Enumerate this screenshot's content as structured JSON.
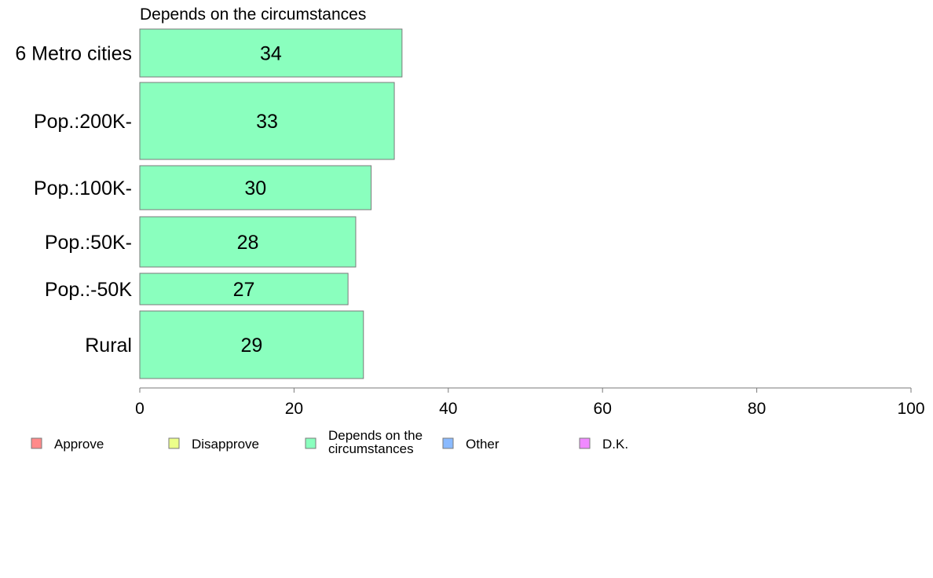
{
  "chart_data": {
    "type": "bar",
    "orientation": "horizontal",
    "title": "Depends on the circumstances",
    "categories": [
      "6 Metro cities",
      "Pop.:200K-",
      "Pop.:100K-",
      "Pop.:50K-",
      "Pop.:-50K",
      "Rural"
    ],
    "values": [
      34,
      33,
      30,
      28,
      27,
      29
    ],
    "bar_color": "#8affbe",
    "xlim": [
      0,
      100
    ],
    "xticks": [
      0,
      20,
      40,
      60,
      80,
      100
    ],
    "grid": false,
    "legend_placement": "bottom",
    "legend": [
      {
        "label": [
          "Approve"
        ],
        "color": "#ff8a8a"
      },
      {
        "label": [
          "Disapprove"
        ],
        "color": "#ecff8a"
      },
      {
        "label": [
          "Depends on the",
          "circumstances"
        ],
        "color": "#8affbe"
      },
      {
        "label": [
          "Other"
        ],
        "color": "#8abaff"
      },
      {
        "label": [
          "D.K."
        ],
        "color": "#f08aff"
      }
    ]
  }
}
